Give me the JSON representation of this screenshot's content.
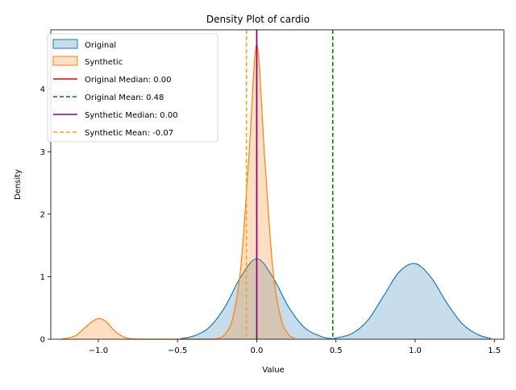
{
  "chart_data": {
    "type": "area",
    "title": "Density Plot of cardio",
    "xlabel": "Value",
    "ylabel": "Density",
    "xlim": [
      -1.3,
      1.56
    ],
    "ylim": [
      0,
      4.95
    ],
    "xticks": [
      -1.0,
      -0.5,
      0.0,
      0.5,
      1.0,
      1.5
    ],
    "xtick_labels": [
      "−1.0",
      "−0.5",
      "0.0",
      "0.5",
      "1.0",
      "1.5"
    ],
    "yticks": [
      0,
      1,
      2,
      3,
      4
    ],
    "ytick_labels": [
      "0",
      "1",
      "2",
      "3",
      "4"
    ],
    "series": [
      {
        "name": "Original",
        "color": "#1f77b4",
        "x": [
          -0.48,
          -0.4,
          -0.3,
          -0.2,
          -0.1,
          0.0,
          0.1,
          0.2,
          0.3,
          0.4,
          0.47,
          0.5,
          0.6,
          0.7,
          0.8,
          0.9,
          1.0,
          1.1,
          1.2,
          1.3,
          1.4,
          1.48
        ],
        "y": [
          0.01,
          0.05,
          0.19,
          0.52,
          1.0,
          1.29,
          1.0,
          0.52,
          0.19,
          0.05,
          0.01,
          0.02,
          0.09,
          0.3,
          0.69,
          1.08,
          1.21,
          0.99,
          0.58,
          0.24,
          0.07,
          0.01
        ]
      },
      {
        "name": "Synthetic",
        "color": "#ff7f0e",
        "x": [
          -1.23,
          -1.15,
          -1.1,
          -1.05,
          -1.0,
          -0.95,
          -0.9,
          -0.85,
          -0.8,
          -0.7,
          -0.5,
          -0.3,
          -0.25,
          -0.2,
          -0.15,
          -0.1,
          -0.05,
          0.0,
          0.05,
          0.1,
          0.15,
          0.2,
          0.24
        ],
        "y": [
          0.0,
          0.05,
          0.15,
          0.26,
          0.33,
          0.28,
          0.14,
          0.05,
          0.01,
          0.0,
          0.0,
          0.0,
          0.01,
          0.08,
          0.36,
          1.17,
          2.91,
          4.72,
          2.91,
          1.17,
          0.36,
          0.08,
          0.02
        ]
      }
    ],
    "vlines": [
      {
        "label": "Original Median: 0.00",
        "x": 0.0,
        "color": "#ff0000",
        "style": "solid"
      },
      {
        "label": "Original Mean: 0.48",
        "x": 0.48,
        "color": "#008000",
        "style": "dashed"
      },
      {
        "label": "Synthetic Median: 0.00",
        "x": 0.0,
        "color": "#800080",
        "style": "solid"
      },
      {
        "label": "Synthetic Mean: -0.07",
        "x": -0.065,
        "color": "#ffa500",
        "style": "dashed"
      }
    ],
    "legend": "top-left",
    "grid": false
  }
}
